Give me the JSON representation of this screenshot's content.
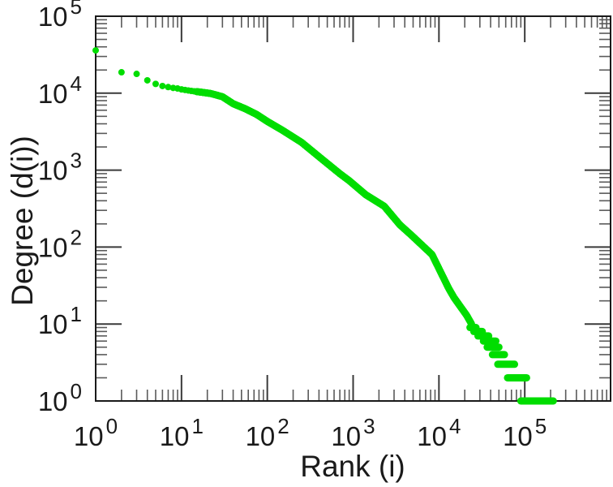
{
  "figure": {
    "background": "#ffffff",
    "frame_color": "#1a1a1a",
    "major_tick_color": "#3a3a3a",
    "minor_tick_color": "#5a5a5a",
    "text_color": "#1a1a1a"
  },
  "chart_data": {
    "type": "scatter",
    "title": "",
    "xlabel": "Rank (i)",
    "ylabel": "Degree (d(i))",
    "x_scale": "log",
    "y_scale": "log",
    "xlim": [
      1,
      1000000
    ],
    "ylim": [
      1,
      100000
    ],
    "grid": false,
    "legend": "none",
    "tick_style": "inward-mirrored",
    "tick_label_base": "10",
    "x_tick_label_exponents": [
      0,
      1,
      2,
      3,
      4,
      5
    ],
    "y_tick_label_exponents": [
      0,
      1,
      2,
      3,
      4,
      5
    ],
    "x_tick_exponents": [
      0,
      1,
      2,
      3,
      4,
      5,
      6
    ],
    "y_tick_exponents": [
      0,
      1,
      2,
      3,
      4,
      5
    ],
    "marker": {
      "shape": "circle",
      "color": "#00dd00",
      "radius": 4,
      "line_thickness": 9
    },
    "series": [
      {
        "name": "degree-vs-rank",
        "anchors_rank_degree": [
          [
            1,
            36000
          ],
          [
            2,
            18700
          ],
          [
            3,
            17800
          ],
          [
            4,
            14700
          ],
          [
            5,
            13200
          ],
          [
            6,
            12400
          ],
          [
            7,
            12000
          ],
          [
            8,
            11700
          ],
          [
            9,
            11500
          ],
          [
            10,
            11200
          ],
          [
            13,
            10700
          ],
          [
            17,
            10300
          ],
          [
            22,
            9900
          ],
          [
            30,
            9000
          ],
          [
            40,
            7300
          ],
          [
            55,
            6300
          ],
          [
            75,
            5300
          ],
          [
            100,
            4300
          ],
          [
            150,
            3300
          ],
          [
            250,
            2300
          ],
          [
            430,
            1400
          ],
          [
            700,
            900
          ],
          [
            900,
            730
          ],
          [
            1400,
            480
          ],
          [
            2300,
            340
          ],
          [
            3500,
            195
          ],
          [
            4800,
            142
          ],
          [
            8300,
            80
          ],
          [
            13000,
            29
          ],
          [
            15000,
            22
          ],
          [
            21000,
            13
          ],
          [
            24000,
            10
          ]
        ],
        "discrete_integer_ranks_max": 14,
        "continuous_rank_range": [
          15,
          24000
        ],
        "tail_bars_degree_rankstart_rankend": [
          [
            9,
            23000,
            27000
          ],
          [
            8,
            25500,
            32000
          ],
          [
            7,
            28500,
            38000
          ],
          [
            6,
            33000,
            46000
          ],
          [
            5,
            36500,
            50000
          ],
          [
            4,
            42000,
            58000
          ],
          [
            3,
            48500,
            76000
          ],
          [
            2,
            63000,
            105000
          ],
          [
            1,
            90000,
            215000
          ]
        ]
      }
    ]
  }
}
